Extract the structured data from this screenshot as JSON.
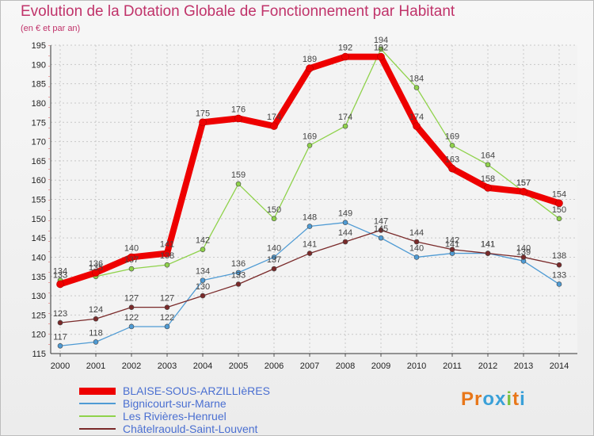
{
  "title": "Evolution de la Dotation Globale de Fonctionnement par Habitant",
  "subtitle": "(en € et par an)",
  "logo": {
    "letters": [
      "P",
      "r",
      "o",
      "x",
      "i",
      "t",
      "i"
    ],
    "colors": [
      "#e8771a",
      "#e8771a",
      "#3aa0d8",
      "#3aa0d8",
      "#7cc242",
      "#e8771a",
      "#3aa0d8"
    ]
  },
  "chart_data": {
    "type": "line",
    "title": "Evolution de la Dotation Globale de Fonctionnement par Habitant",
    "subtitle": "(en € et par an)",
    "x": [
      "2000",
      "2001",
      "2002",
      "2003",
      "2004",
      "2005",
      "2006",
      "2007",
      "2008",
      "2009",
      "2010",
      "2011",
      "2012",
      "2013",
      "2014"
    ],
    "ylim": [
      115,
      195
    ],
    "yticks": [
      115,
      120,
      125,
      130,
      135,
      140,
      145,
      150,
      155,
      160,
      165,
      170,
      175,
      180,
      185,
      190,
      195
    ],
    "grid": true,
    "legend_position": "bottom-left",
    "series": [
      {
        "name": "BLAISE-SOUS-ARZILLIèRES",
        "color": "#ee0000",
        "bold": true,
        "values": [
          133,
          136,
          140,
          141,
          175,
          176,
          174,
          189,
          192,
          192,
          174,
          163,
          158,
          157,
          154
        ],
        "labels": [
          "133",
          "136",
          "140",
          "141",
          "175",
          "176",
          "174",
          "189",
          "192",
          "192",
          "174",
          "163",
          "158",
          "157",
          "154"
        ]
      },
      {
        "name": "Bignicourt-sur-Marne",
        "color": "#4f9bd4",
        "bold": false,
        "values": [
          117,
          118,
          122,
          122,
          134,
          136,
          140,
          148,
          149,
          145,
          140,
          141,
          141,
          139,
          133
        ],
        "labels": [
          "117",
          "118",
          "122",
          "122",
          "134",
          "136",
          "140",
          "148",
          "149",
          "145",
          "140",
          "141",
          "141",
          "139",
          "133"
        ]
      },
      {
        "name": "Les Rivières-Henruel",
        "color": "#8fd24b",
        "bold": false,
        "values": [
          134,
          135,
          137,
          138,
          142,
          159,
          150,
          169,
          174,
          194,
          184,
          169,
          164,
          157,
          150
        ],
        "labels": [
          "134",
          "135",
          "137",
          "138",
          "142",
          "159",
          "150",
          "169",
          "174",
          "194",
          "184",
          "169",
          "164",
          "157",
          "150"
        ]
      },
      {
        "name": "Châtelraould-Saint-Louvent",
        "color": "#7a2a2a",
        "bold": false,
        "values": [
          123,
          124,
          127,
          127,
          130,
          133,
          137,
          141,
          144,
          147,
          144,
          142,
          141,
          140,
          138
        ],
        "labels": [
          "123",
          "124",
          "127",
          "127",
          "130",
          "133",
          "137",
          "141",
          "144",
          "147",
          "144",
          "142",
          "141",
          "140",
          "138"
        ]
      }
    ]
  }
}
